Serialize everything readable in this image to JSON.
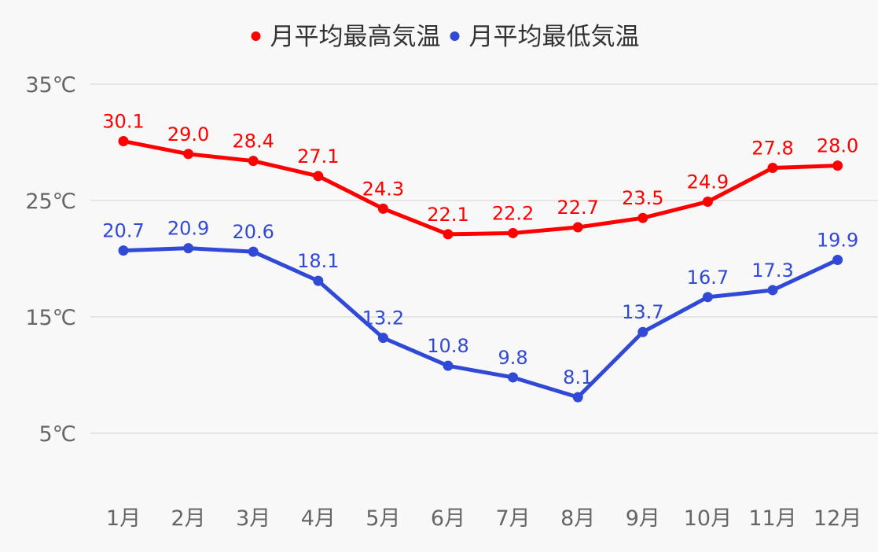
{
  "chart_data": {
    "type": "line",
    "title": "",
    "xlabel": "",
    "ylabel": "",
    "categories": [
      "1月",
      "2月",
      "3月",
      "4月",
      "5月",
      "6月",
      "7月",
      "8月",
      "9月",
      "10月",
      "11月",
      "12月"
    ],
    "y_ticks": [
      {
        "value": 35,
        "label": "35℃"
      },
      {
        "value": 25,
        "label": "25℃"
      },
      {
        "value": 15,
        "label": "15℃"
      },
      {
        "value": 5,
        "label": "5℃"
      }
    ],
    "ylim": [
      0,
      35
    ],
    "grid": true,
    "legend_position": "top-center",
    "series": [
      {
        "name": "月平均最高気温",
        "color": "#ff0000",
        "values": [
          30.1,
          29.0,
          28.4,
          27.1,
          24.3,
          22.1,
          22.2,
          22.7,
          23.5,
          24.9,
          27.8,
          28.0
        ],
        "labels": [
          "30.1",
          "29.0",
          "28.4",
          "27.1",
          "24.3",
          "22.1",
          "22.2",
          "22.7",
          "23.5",
          "24.9",
          "27.8",
          "28.0"
        ]
      },
      {
        "name": "月平均最低気温",
        "color": "#3049d6",
        "values": [
          20.7,
          20.9,
          20.6,
          18.1,
          13.2,
          10.8,
          9.8,
          8.1,
          13.7,
          16.7,
          17.3,
          19.9
        ],
        "labels": [
          "20.7",
          "20.9",
          "20.6",
          "18.1",
          "13.2",
          "10.8",
          "9.8",
          "8.1",
          "13.7",
          "16.7",
          "17.3",
          "19.9"
        ]
      }
    ]
  },
  "colors": {
    "background": "#f8f8f8",
    "grid": "#e0e0e0",
    "axis_text": "#666666"
  }
}
